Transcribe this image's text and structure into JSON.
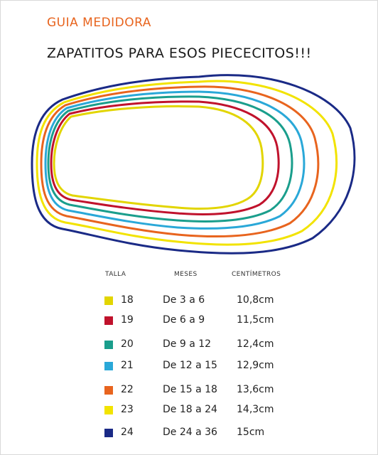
{
  "header": {
    "kicker": "GUIA MEDIDORA",
    "title": "ZAPATITOS PARA ESOS PIECECITOS!!!"
  },
  "table": {
    "headers": {
      "talla": "TALLA",
      "meses": "MESES",
      "cm": "CENTÍMETROS"
    },
    "rows": [
      {
        "talla": "18",
        "meses": "De 3 a 6",
        "cm": "10,8cm",
        "color": "#e2d500"
      },
      {
        "talla": "19",
        "meses": "De 6 a 9",
        "cm": "11,5cm",
        "color": "#c0122c"
      },
      {
        "talla": "20",
        "meses": "De 9 a 12",
        "cm": "12,4cm",
        "color": "#1a9e8c"
      },
      {
        "talla": "21",
        "meses": "De 12 a 15",
        "cm": "12,9cm",
        "color": "#2aa8d8"
      },
      {
        "talla": "22",
        "meses": "De 15 a 18",
        "cm": "13,6cm",
        "color": "#e8641e"
      },
      {
        "talla": "23",
        "meses": "De 18 a 24",
        "cm": "14,3cm",
        "color": "#f2e300"
      },
      {
        "talla": "24",
        "meses": "De 24 a 36",
        "cm": "15cm",
        "color": "#1a2a86"
      }
    ]
  }
}
